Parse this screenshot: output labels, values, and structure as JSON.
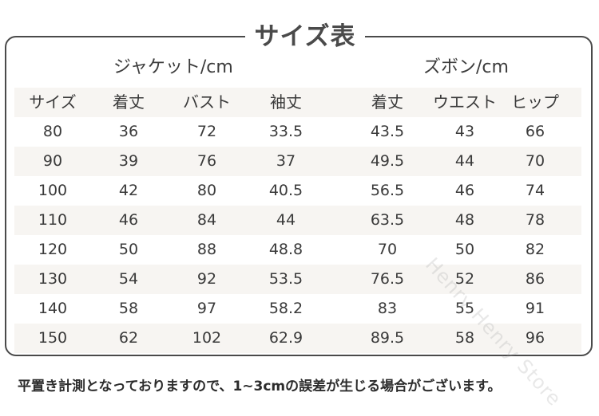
{
  "title": "サイズ表",
  "groups": {
    "jacket": "ジャケット/cm",
    "pants": "ズボン/cm"
  },
  "columns": [
    "サイズ",
    "着丈",
    "バスト",
    "袖丈",
    "着丈",
    "ウエスト",
    "ヒップ"
  ],
  "rows": [
    [
      "80",
      "36",
      "72",
      "33.5",
      "43.5",
      "43",
      "66"
    ],
    [
      "90",
      "39",
      "76",
      "37",
      "49.5",
      "44",
      "70"
    ],
    [
      "100",
      "42",
      "80",
      "40.5",
      "56.5",
      "46",
      "74"
    ],
    [
      "110",
      "46",
      "84",
      "44",
      "63.5",
      "48",
      "78"
    ],
    [
      "120",
      "50",
      "88",
      "48.8",
      "70",
      "50",
      "82"
    ],
    [
      "130",
      "54",
      "92",
      "53.5",
      "76.5",
      "52",
      "86"
    ],
    [
      "140",
      "58",
      "97",
      "58.2",
      "83",
      "55",
      "91"
    ],
    [
      "150",
      "62",
      "102",
      "62.9",
      "89.5",
      "58",
      "96"
    ]
  ],
  "watermark": "Henry Henry Store",
  "note": "平置き計測となっておりますので、1~3cmの誤差が生じる場合がございます。"
}
